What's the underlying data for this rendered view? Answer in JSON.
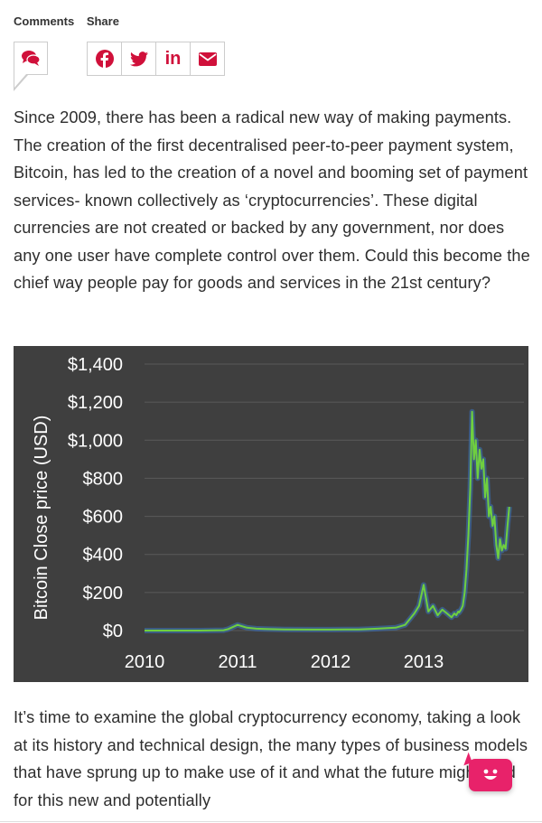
{
  "tabs": {
    "comments": "Comments",
    "share": "Share"
  },
  "icons": {
    "comments": "speech-bubbles-icon",
    "facebook": "facebook-icon",
    "twitter": "twitter-icon",
    "linkedin": "linkedin-icon",
    "email": "envelope-icon",
    "chat": "smiley-chat-icon"
  },
  "share": {
    "linkedin_text": "in"
  },
  "colors": {
    "accent": "#d0103a",
    "chart_bg": "#3f3f3f",
    "line": "#6fcf3f",
    "chat": "#e8226a"
  },
  "article": {
    "paragraph1": "Since 2009, there has been a radical new way of making payments. The creation of the first decentralised peer-to-peer payment system, Bitcoin, has led to the creation of a novel and booming set of payment services- known collectively as ‘cryptocurrencies’. These digital currencies are not created or backed by any government, nor does any one user have complete control over them. Could this become the chief way people pay for goods and services in the 21st century?",
    "paragraph2": "It’s time to examine the global cryptocurrency economy, taking a look at its history and technical design, the many types of business models that have sprung up to make use of it and what the future might hold for this new and potentially"
  },
  "chart_data": {
    "type": "line",
    "title": "",
    "xlabel": "",
    "ylabel": "Bitcoin Close price (USD)",
    "xlim": [
      2010.0,
      2013.98
    ],
    "ylim": [
      0,
      1400
    ],
    "x_ticks": [
      "2010",
      "2011",
      "2012",
      "2013"
    ],
    "y_ticks": [
      "$0",
      "$200",
      "$400",
      "$600",
      "$800",
      "$1,000",
      "$1,200",
      "$1,400"
    ],
    "grid": "horizontal",
    "series": [
      {
        "x": [
          2010.0,
          2010.3,
          2010.6,
          2010.85,
          2010.9,
          2011.0,
          2011.1,
          2011.2,
          2011.3,
          2011.5,
          2011.8,
          2012.0,
          2012.3,
          2012.5,
          2012.7,
          2012.8,
          2012.85,
          2012.9,
          2012.95,
          2013.0,
          2013.05,
          2013.1,
          2013.15,
          2013.2,
          2013.25,
          2013.3,
          2013.33,
          2013.35,
          2013.37,
          2013.38,
          2013.4,
          2013.42,
          2013.44,
          2013.46,
          2013.48,
          2013.5,
          2013.52,
          2013.54,
          2013.56,
          2013.58,
          2013.6,
          2013.62,
          2013.64,
          2013.66,
          2013.68,
          2013.7,
          2013.72,
          2013.74,
          2013.76,
          2013.78,
          2013.8,
          2013.82,
          2013.84,
          2013.86,
          2013.88,
          2013.9,
          2013.92
        ],
        "y": [
          0,
          0,
          0,
          2,
          8,
          30,
          15,
          10,
          8,
          6,
          5,
          5,
          6,
          10,
          15,
          30,
          60,
          90,
          130,
          240,
          100,
          130,
          80,
          110,
          90,
          70,
          90,
          80,
          100,
          95,
          110,
          130,
          200,
          320,
          500,
          750,
          1150,
          900,
          1000,
          800,
          950,
          850,
          900,
          700,
          800,
          600,
          650,
          550,
          600,
          450,
          380,
          480,
          420,
          450,
          430,
          550,
          650
        ]
      }
    ]
  }
}
